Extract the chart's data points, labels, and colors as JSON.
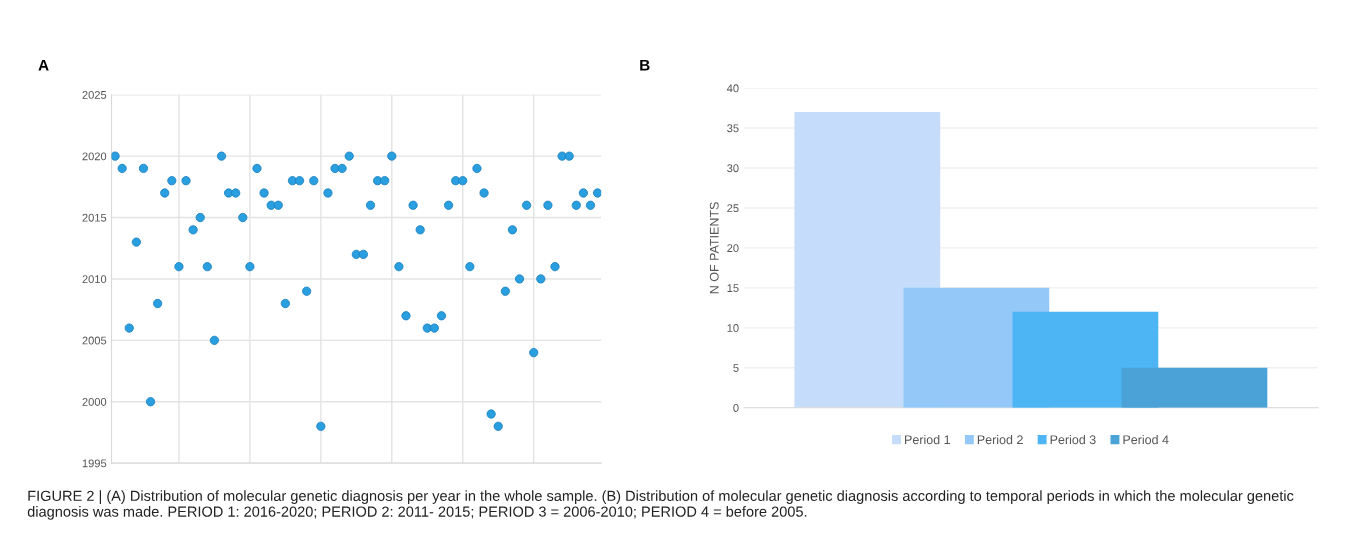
{
  "chart_data": [
    {
      "type": "scatter",
      "title": "A",
      "categories": [
        null,
        null,
        null,
        null,
        null,
        null,
        null,
        null,
        null,
        null,
        null,
        null,
        null,
        null,
        null,
        null,
        null,
        null,
        null,
        null,
        null,
        null,
        null,
        null,
        null,
        null,
        null,
        null,
        null,
        null,
        null,
        null,
        null,
        null,
        null,
        null,
        null,
        null,
        null,
        null,
        null,
        null,
        null,
        null,
        null,
        null,
        null,
        null,
        null,
        null,
        null,
        null,
        null,
        null,
        null,
        null,
        null,
        null,
        null,
        null,
        null,
        null,
        null,
        null,
        null,
        null,
        null,
        null,
        null
      ],
      "series": [
        {
          "color": "#2a9fe0",
          "values": [
            2020,
            2019,
            2006,
            2013,
            2019,
            2000,
            2008,
            2017,
            2018,
            2011,
            2018,
            2014,
            2015,
            2011,
            2005,
            2020,
            2017,
            2017,
            2015,
            2011,
            2019,
            2017,
            2016,
            2016,
            2008,
            2018,
            2018,
            2009,
            2018,
            1998,
            2017,
            2019,
            2019,
            2020,
            2012,
            2012,
            2016,
            2018,
            2018,
            2020,
            2011,
            2007,
            2016,
            2014,
            2006,
            2006,
            2007,
            2016,
            2018,
            2018,
            2011,
            2019,
            2017,
            1999,
            1998,
            2009,
            2014,
            2010,
            2016,
            2004,
            2010,
            2016,
            2011,
            2020,
            2020,
            2016,
            2017,
            2016,
            2017
          ]
        }
      ],
      "ylim": [
        1995,
        2025
      ],
      "yticks": [
        1995,
        2000,
        2005,
        2010,
        2015,
        2020,
        2025
      ],
      "tick_labels": "y",
      "grid": true,
      "marker": "circle",
      "annotations": [
        "FIGURE 2 | (A) Distribution of molecular genetic diagnosis per year in the whole sample. (B) Distribution of molecular genetic diagnosis according to temporal periods in which the molecular genetic diagnosis was made. PERIOD 1: 2016-2020; PERIOD 2: 2011- 2015; PERIOD 3 = 2006-2010; PERIOD 4 = before 2005."
      ]
    },
    {
      "type": "bar",
      "title": "B",
      "ylabel": "N OF PATIENTS",
      "categories": [
        null
      ],
      "series": [
        {
          "name": "Period 1",
          "color": "#c5ddfa",
          "values": [
            37
          ]
        },
        {
          "name": "Period 2",
          "color": "#94c8f8",
          "values": [
            15
          ]
        },
        {
          "name": "Period 3",
          "color": "#4db5f3",
          "values": [
            12
          ]
        },
        {
          "name": "Period 4",
          "color": "#4aa2d6",
          "values": [
            5
          ]
        }
      ],
      "ylim": [
        0,
        40
      ],
      "yticks": [
        0,
        5,
        10,
        15,
        20,
        25,
        30,
        35,
        40
      ],
      "grid": "y",
      "legend": "bottom"
    }
  ]
}
